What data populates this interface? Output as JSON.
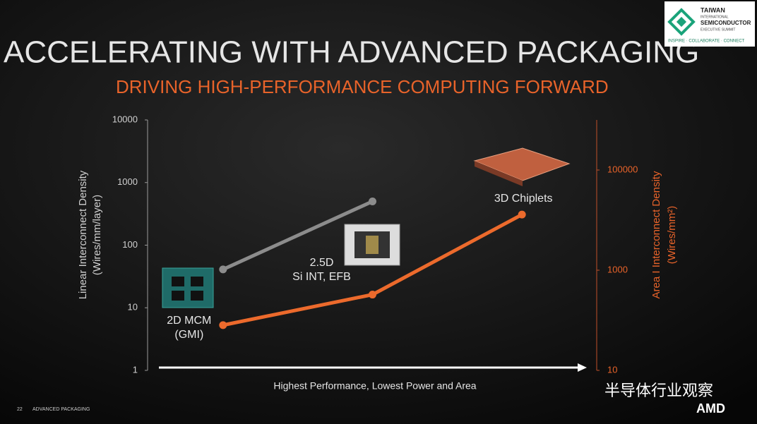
{
  "chart_data": {
    "type": "line",
    "title": "ACCELERATING WITH ADVANCED PACKAGING",
    "subtitle": "DRIVING HIGH-PERFORMANCE COMPUTING FORWARD",
    "categories": [
      [
        "2D MCM",
        "(GMI)"
      ],
      [
        "2.5D",
        "Si INT, EFB"
      ],
      [
        "3D Chiplets"
      ]
    ],
    "xlabel": "Highest Performance, Lowest Power and Area",
    "ylabel": [
      "Linear Interconnect Density",
      "(Wires/mm/layer)"
    ],
    "y2label": [
      "Area I Interconnect Density",
      "(Wires/mm²)"
    ],
    "ylim": [
      1,
      10000
    ],
    "yticks": [
      1,
      10,
      100,
      1000,
      10000
    ],
    "yscale": "log",
    "y2lim": [
      10,
      1000000
    ],
    "y2ticks": [
      10,
      1000,
      100000
    ],
    "y2scale": "log",
    "series": [
      {
        "name": "Linear Interconnect Density",
        "color": "#8c8c8c",
        "values": [
          41,
          500,
          null
        ]
      },
      {
        "name": "Area Interconnect Density",
        "color": "#ec6a2c",
        "axis": "y2",
        "values": [
          80,
          326,
          12900
        ]
      }
    ]
  },
  "header": {
    "logo": [
      "TAIWAN",
      "INTERNATIONAL",
      "SEMICONDUCTOR",
      "EXECUTIVE SUMMIT"
    ],
    "tagline": "INSPIRE · COLLABORATE · CONNECT"
  },
  "footer": {
    "page": "22",
    "section": "ADVANCED PACKAGING",
    "watermark": "半导体行业观察",
    "brand": "AMD"
  }
}
